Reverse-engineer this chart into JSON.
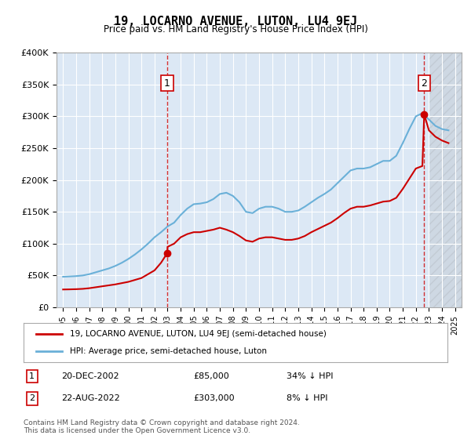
{
  "title": "19, LOCARNO AVENUE, LUTON, LU4 9EJ",
  "subtitle": "Price paid vs. HM Land Registry's House Price Index (HPI)",
  "legend_line1": "19, LOCARNO AVENUE, LUTON, LU4 9EJ (semi-detached house)",
  "legend_line2": "HPI: Average price, semi-detached house, Luton",
  "footer": "Contains HM Land Registry data © Crown copyright and database right 2024.\nThis data is licensed under the Open Government Licence v3.0.",
  "sale1_label": "1",
  "sale1_date": "20-DEC-2002",
  "sale1_price": "£85,000",
  "sale1_hpi": "34% ↓ HPI",
  "sale1_year": 2002.97,
  "sale1_value": 85000,
  "sale2_label": "2",
  "sale2_date": "22-AUG-2022",
  "sale2_price": "£303,000",
  "sale2_hpi": "8% ↓ HPI",
  "sale2_year": 2022.64,
  "sale2_value": 303000,
  "ylim": [
    0,
    400000
  ],
  "yticks": [
    0,
    50000,
    100000,
    150000,
    200000,
    250000,
    300000,
    350000,
    400000
  ],
  "ytick_labels": [
    "£0",
    "£50K",
    "£100K",
    "£150K",
    "£200K",
    "£250K",
    "£300K",
    "£350K",
    "£400K"
  ],
  "xlim_start": 1994.5,
  "xlim_end": 2025.5,
  "bg_color": "#e8f0f8",
  "plot_bg": "#dce8f5",
  "hatch_start": 2023.0,
  "red_color": "#cc0000",
  "blue_color": "#6ab0d8",
  "hpi_years": [
    1995,
    1995.5,
    1996,
    1996.5,
    1997,
    1997.5,
    1998,
    1998.5,
    1999,
    1999.5,
    2000,
    2000.5,
    2001,
    2001.5,
    2002,
    2002.5,
    2003,
    2003.5,
    2004,
    2004.5,
    2005,
    2005.5,
    2006,
    2006.5,
    2007,
    2007.5,
    2008,
    2008.5,
    2009,
    2009.5,
    2010,
    2010.5,
    2011,
    2011.5,
    2012,
    2012.5,
    2013,
    2013.5,
    2014,
    2014.5,
    2015,
    2015.5,
    2016,
    2016.5,
    2017,
    2017.5,
    2018,
    2018.5,
    2019,
    2019.5,
    2020,
    2020.5,
    2021,
    2021.5,
    2022,
    2022.5,
    2023,
    2023.5,
    2024,
    2024.5
  ],
  "hpi_values": [
    48000,
    48500,
    49000,
    50000,
    52000,
    55000,
    58000,
    61000,
    65000,
    70000,
    76000,
    83000,
    91000,
    100000,
    110000,
    118000,
    127000,
    133000,
    145000,
    155000,
    162000,
    163000,
    165000,
    170000,
    178000,
    180000,
    175000,
    165000,
    150000,
    148000,
    155000,
    158000,
    158000,
    155000,
    150000,
    150000,
    152000,
    158000,
    165000,
    172000,
    178000,
    185000,
    195000,
    205000,
    215000,
    218000,
    218000,
    220000,
    225000,
    230000,
    230000,
    238000,
    258000,
    280000,
    300000,
    305000,
    295000,
    285000,
    280000,
    278000
  ],
  "red_years": [
    1995,
    1995.5,
    1996,
    1996.5,
    1997,
    1997.5,
    1998,
    1998.5,
    1999,
    1999.5,
    2000,
    2000.5,
    2001,
    2001.5,
    2002,
    2002.5,
    2002.97,
    2003,
    2003.5,
    2004,
    2004.5,
    2005,
    2005.5,
    2006,
    2006.5,
    2007,
    2007.5,
    2008,
    2008.5,
    2009,
    2009.5,
    2010,
    2010.5,
    2011,
    2011.5,
    2012,
    2012.5,
    2013,
    2013.5,
    2014,
    2014.5,
    2015,
    2015.5,
    2016,
    2016.5,
    2017,
    2017.5,
    2018,
    2018.5,
    2019,
    2019.5,
    2020,
    2020.5,
    2021,
    2021.5,
    2022,
    2022.5,
    2022.64,
    2023,
    2023.5,
    2024,
    2024.5
  ],
  "red_values": [
    28000,
    28200,
    28500,
    29000,
    30000,
    31500,
    33000,
    34500,
    36000,
    38000,
    40000,
    43000,
    46000,
    52000,
    58000,
    70000,
    85000,
    95000,
    100000,
    110000,
    115000,
    118000,
    118000,
    120000,
    122000,
    125000,
    122000,
    118000,
    112000,
    105000,
    103000,
    108000,
    110000,
    110000,
    108000,
    106000,
    106000,
    108000,
    112000,
    118000,
    123000,
    128000,
    133000,
    140000,
    148000,
    155000,
    158000,
    158000,
    160000,
    163000,
    166000,
    167000,
    172000,
    186000,
    202000,
    218000,
    222000,
    303000,
    278000,
    268000,
    262000,
    258000
  ]
}
